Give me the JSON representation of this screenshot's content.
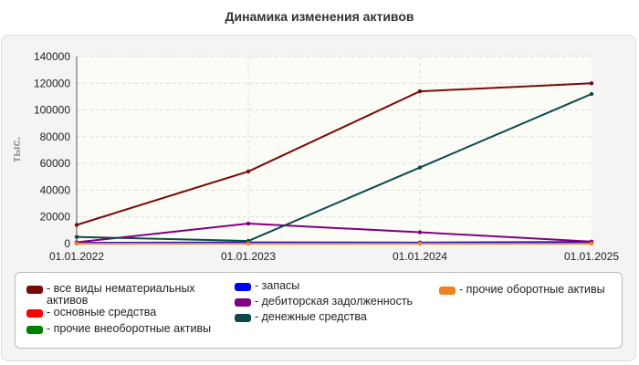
{
  "chart_data": {
    "type": "line",
    "title": "Динамика изменения активов",
    "ylabel": "тыс.",
    "xlabel": "",
    "x": [
      "01.01.2022",
      "01.01.2023",
      "01.01.2024",
      "01.01.2025"
    ],
    "y_ticks": [
      "0",
      "20000",
      "40000",
      "60000",
      "80000",
      "100000",
      "120000",
      "140000"
    ],
    "ylim": [
      0,
      140000
    ],
    "grid": true,
    "legend_position": "bottom",
    "series": [
      {
        "name": "- все виды нематериальных активов",
        "color": "#7a0a0a",
        "values": [
          14000,
          54000,
          114000,
          120000
        ]
      },
      {
        "name": "- основные средства",
        "color": "#ff0000",
        "values": [
          300,
          300,
          300,
          300
        ]
      },
      {
        "name": "- прочие внеоборотные активы",
        "color": "#008000",
        "values": [
          200,
          200,
          200,
          200
        ]
      },
      {
        "name": "- запасы",
        "color": "#0000ff",
        "values": [
          600,
          900,
          800,
          1200
        ]
      },
      {
        "name": "- дебиторская задолженность",
        "color": "#800080",
        "values": [
          1000,
          15000,
          8500,
          1500
        ]
      },
      {
        "name": "- денежные средства",
        "color": "#0b4a4a",
        "values": [
          5000,
          2000,
          57000,
          112000
        ]
      },
      {
        "name": "- прочие оборотные активы",
        "color": "#f08020",
        "values": [
          100,
          100,
          100,
          100
        ]
      }
    ]
  }
}
